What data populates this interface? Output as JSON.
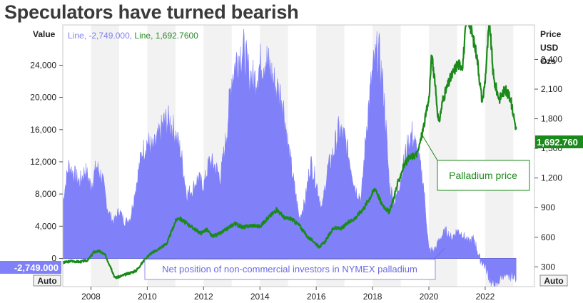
{
  "title": "Speculators have turned bearish",
  "chart_data": {
    "type": "area",
    "x_unit": "year",
    "xlim": [
      2007.0,
      2023.75
    ],
    "x_ticks": [
      2008,
      2010,
      2012,
      2014,
      2016,
      2018,
      2020,
      2022
    ],
    "y_left": {
      "label": "Value",
      "ylim": [
        -3500,
        29000
      ],
      "ticks": [
        0,
        4000,
        8000,
        12000,
        16000,
        20000,
        24000
      ],
      "tick_labels": [
        "0",
        "4,000",
        "8,000",
        "12,000",
        "16,000",
        "20,000",
        "24,000"
      ],
      "auto_label": "Auto"
    },
    "y_right": {
      "label_lines": [
        "Price",
        "USD",
        "Ozs"
      ],
      "ylim": [
        100,
        2750
      ],
      "ticks": [
        300,
        600,
        900,
        1200,
        1500,
        1800,
        2100,
        2400
      ],
      "tick_labels": [
        "300",
        "600",
        "900",
        "1,200",
        "1,500",
        "1,800",
        "2,100",
        "2,400"
      ],
      "auto_label": "Auto"
    },
    "legend": {
      "position": "top-left",
      "items": [
        {
          "prefix": "Line, ",
          "value": "-2,749.000,",
          "color": "#8080ee"
        },
        {
          "prefix": "Line, ",
          "value": "1,692.7600",
          "color": "#2a8a2a"
        }
      ]
    },
    "last_value_badges": {
      "net_position": "-2,749.000",
      "price": "1,692.760"
    },
    "series": [
      {
        "name": "Net position of non-commercial investors in NYMEX palladium",
        "axis": "left",
        "color": "#8080f8",
        "x": [
          2007.0,
          2007.2,
          2007.4,
          2007.6,
          2007.8,
          2008.0,
          2008.2,
          2008.4,
          2008.6,
          2008.8,
          2009.0,
          2009.2,
          2009.4,
          2009.6,
          2009.8,
          2010.0,
          2010.2,
          2010.4,
          2010.6,
          2010.8,
          2011.0,
          2011.2,
          2011.4,
          2011.6,
          2011.8,
          2012.0,
          2012.2,
          2012.4,
          2012.6,
          2012.8,
          2013.0,
          2013.2,
          2013.4,
          2013.6,
          2013.8,
          2014.0,
          2014.2,
          2014.4,
          2014.6,
          2014.8,
          2015.0,
          2015.2,
          2015.4,
          2015.6,
          2015.8,
          2016.0,
          2016.2,
          2016.4,
          2016.6,
          2016.8,
          2017.0,
          2017.2,
          2017.4,
          2017.6,
          2017.8,
          2018.0,
          2018.2,
          2018.4,
          2018.6,
          2018.8,
          2019.0,
          2019.2,
          2019.4,
          2019.6,
          2019.8,
          2020.0,
          2020.2,
          2020.4,
          2020.6,
          2020.8,
          2021.0,
          2021.2,
          2021.4,
          2021.6,
          2021.8,
          2022.0,
          2022.2,
          2022.4,
          2022.6,
          2022.8,
          2023.0,
          2023.1
        ],
        "values": [
          7000,
          11500,
          10500,
          9500,
          11000,
          9000,
          11500,
          10000,
          6000,
          4500,
          6000,
          4500,
          5000,
          9000,
          13000,
          14500,
          13500,
          15000,
          17000,
          17000,
          15500,
          13000,
          8000,
          8500,
          10000,
          9000,
          12000,
          11500,
          10000,
          15000,
          22500,
          25000,
          26000,
          23000,
          22000,
          24000,
          25000,
          23000,
          21000,
          20000,
          14000,
          9500,
          5000,
          7000,
          12000,
          9500,
          6000,
          11000,
          13000,
          16000,
          15000,
          12000,
          8500,
          7500,
          17000,
          23000,
          26000,
          20500,
          9000,
          7000,
          10000,
          13500,
          15500,
          13000,
          9500,
          1000,
          1000,
          2500,
          3500,
          2500,
          3500,
          3000,
          2000,
          2500,
          0,
          -1000,
          -3000,
          -3500,
          -2000,
          -2500,
          -2000,
          -2749
        ]
      },
      {
        "name": "Palladium price",
        "axis": "right",
        "color": "#1a8a1a",
        "x": [
          2007.0,
          2007.3,
          2007.6,
          2007.9,
          2008.1,
          2008.3,
          2008.5,
          2008.7,
          2008.85,
          2009.0,
          2009.3,
          2009.6,
          2009.9,
          2010.1,
          2010.4,
          2010.7,
          2011.0,
          2011.1,
          2011.4,
          2011.7,
          2011.9,
          2012.1,
          2012.3,
          2012.6,
          2012.9,
          2013.1,
          2013.4,
          2013.7,
          2014.0,
          2014.3,
          2014.6,
          2014.9,
          2015.1,
          2015.4,
          2015.7,
          2015.9,
          2016.1,
          2016.3,
          2016.6,
          2016.9,
          2017.1,
          2017.4,
          2017.7,
          2017.9,
          2018.1,
          2018.3,
          2018.6,
          2018.9,
          2019.1,
          2019.3,
          2019.6,
          2019.8,
          2020.0,
          2020.1,
          2020.2,
          2020.35,
          2020.5,
          2020.75,
          2021.0,
          2021.2,
          2021.35,
          2021.5,
          2021.7,
          2021.9,
          2022.0,
          2022.15,
          2022.3,
          2022.5,
          2022.7,
          2022.9,
          2023.1
        ],
        "values": [
          340,
          360,
          350,
          370,
          450,
          460,
          420,
          300,
          190,
          200,
          230,
          260,
          370,
          430,
          480,
          540,
          760,
          800,
          740,
          680,
          640,
          680,
          610,
          640,
          700,
          740,
          700,
          720,
          710,
          800,
          880,
          790,
          790,
          720,
          600,
          560,
          500,
          550,
          690,
          690,
          740,
          800,
          900,
          1000,
          1100,
          950,
          850,
          1150,
          1320,
          1400,
          1450,
          1700,
          2000,
          2450,
          2200,
          1750,
          2000,
          2200,
          2350,
          2350,
          2850,
          2700,
          2450,
          1950,
          2200,
          2800,
          2200,
          2000,
          2100,
          2000,
          1692.76
        ]
      }
    ],
    "annotations": [
      {
        "text": "Palladium price",
        "color": "#1a8a1a"
      },
      {
        "text": "Net position of non-commercial investors in NYMEX palladium",
        "color": "#7070e8"
      }
    ]
  }
}
